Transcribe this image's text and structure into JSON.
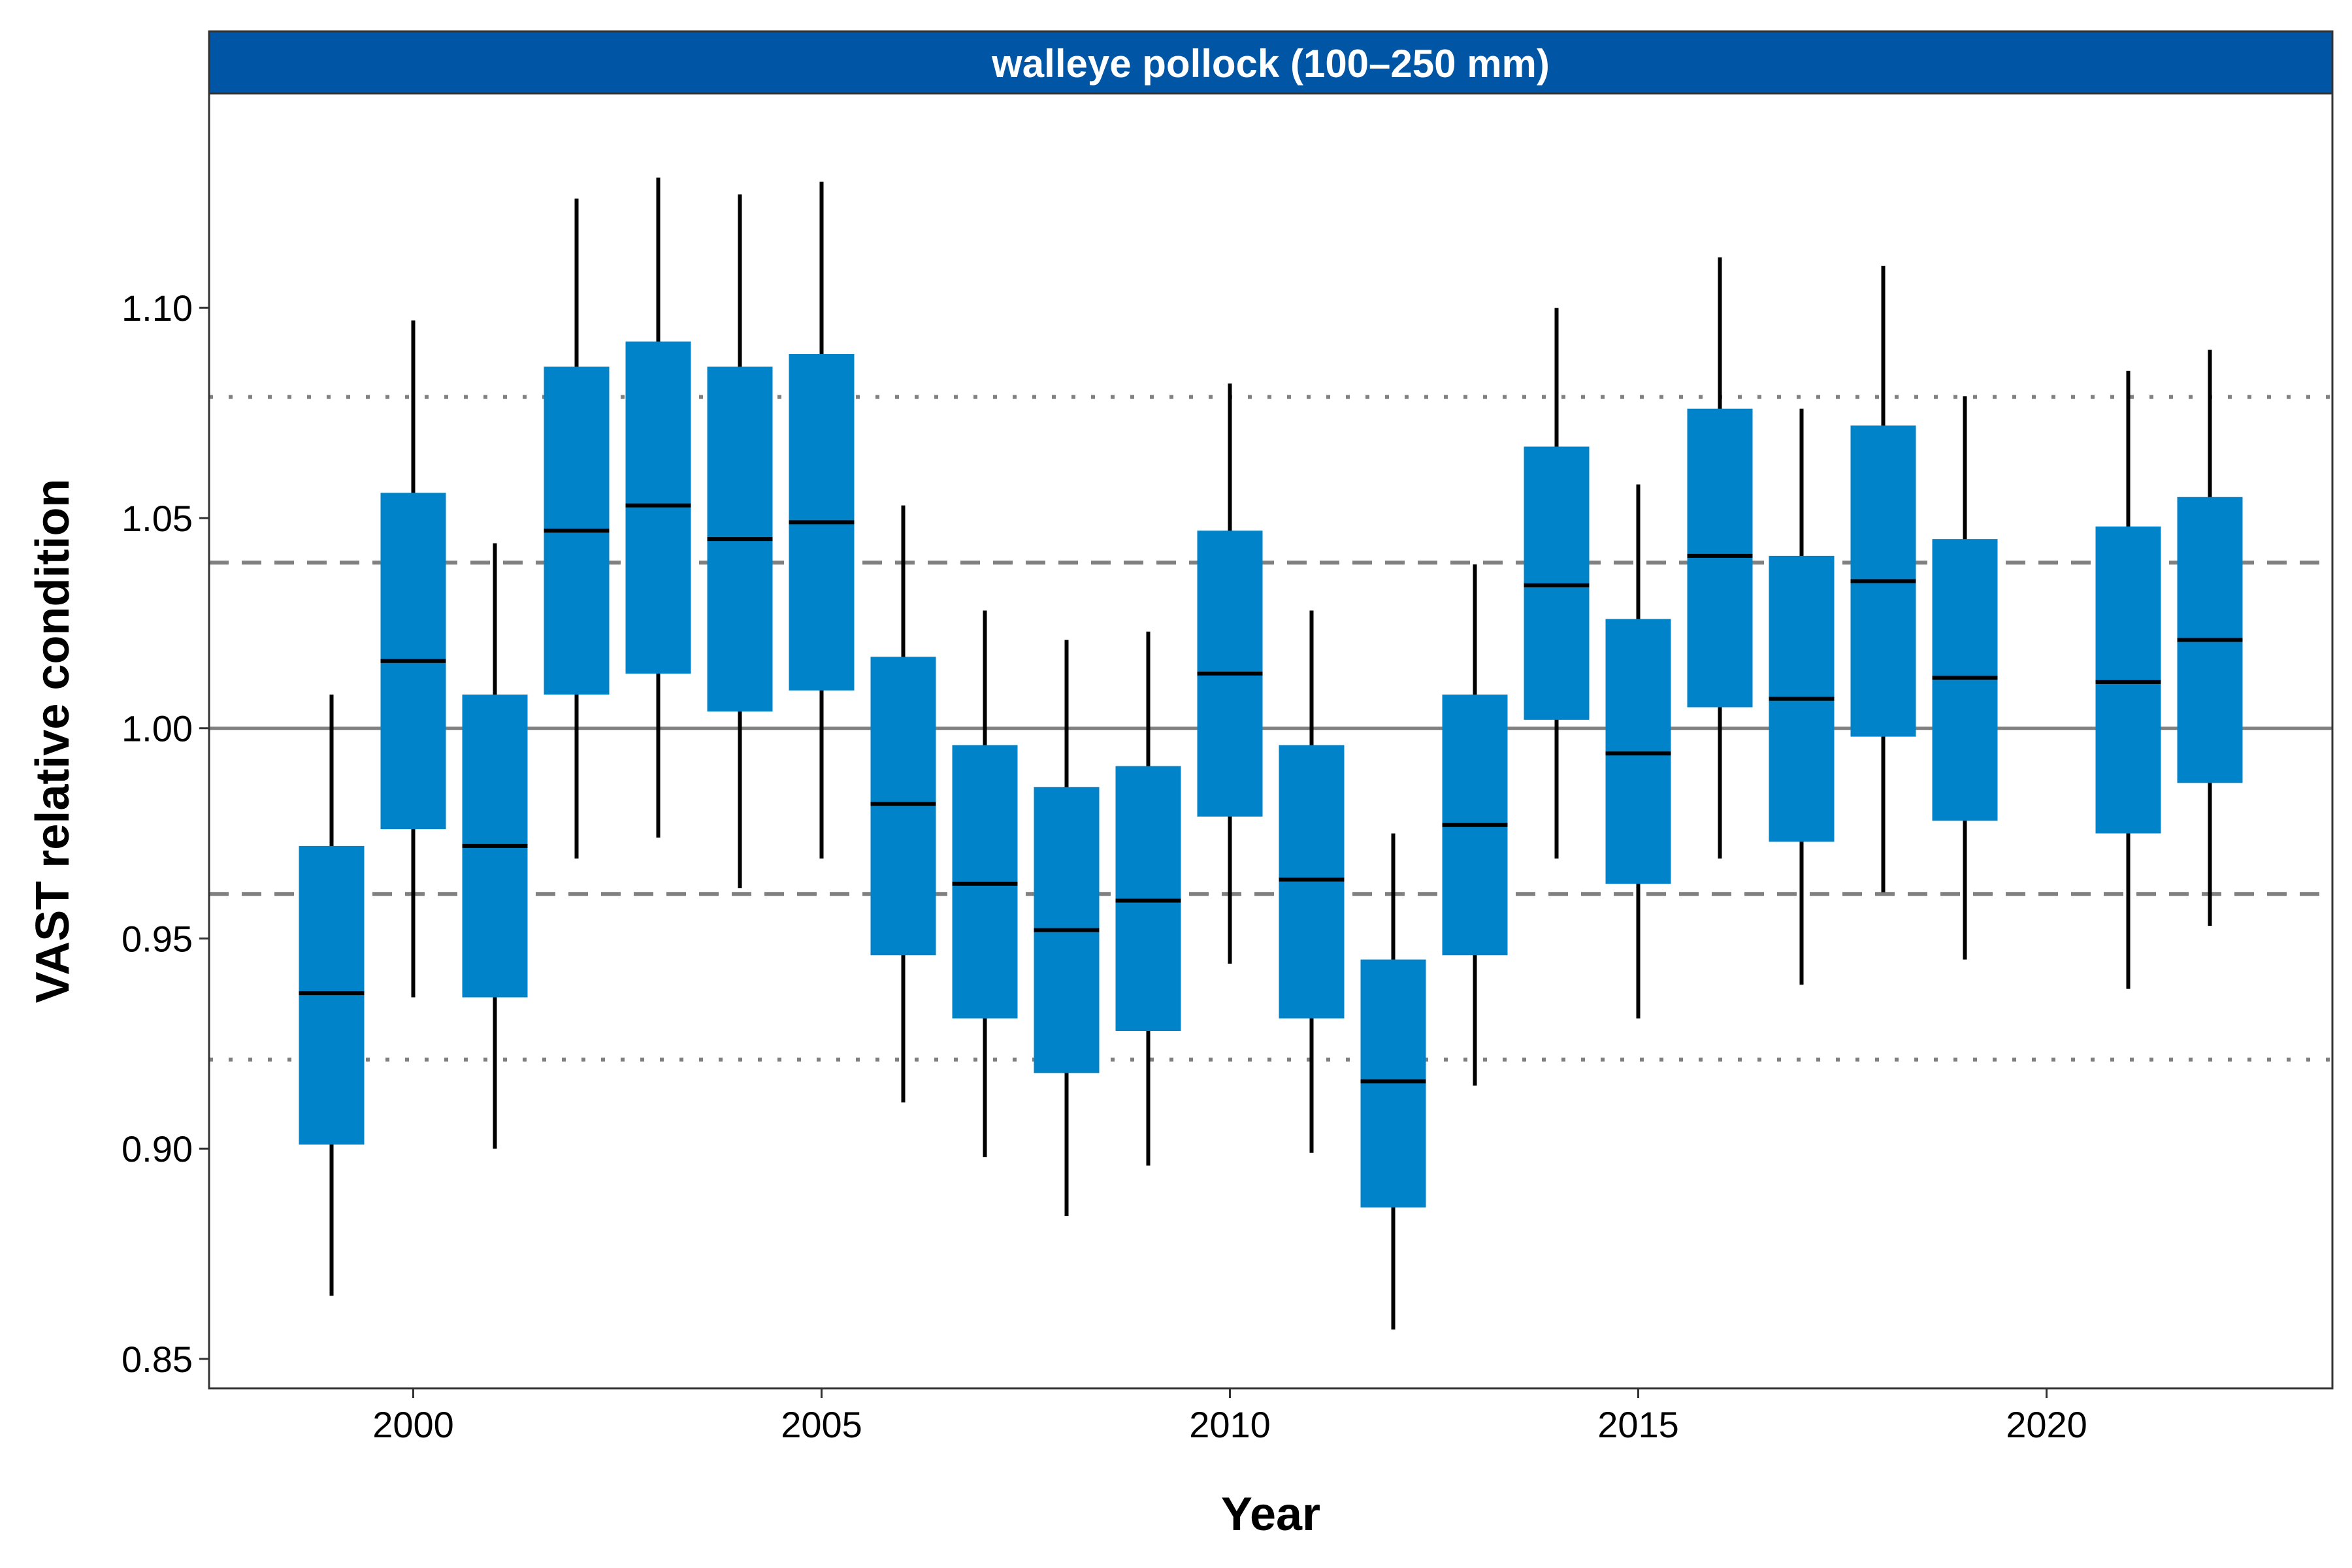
{
  "chart_data": {
    "type": "boxplot",
    "panel_title": "walleye pollock (100–250 mm)",
    "xlabel": "Year",
    "ylabel": "VAST relative condition",
    "xlim": [
      1997.5,
      2023.5
    ],
    "ylim": [
      0.843,
      1.151
    ],
    "x_ticks": [
      2000,
      2005,
      2010,
      2015,
      2020
    ],
    "x_tick_labels": [
      "2000",
      "2005",
      "2010",
      "2015",
      "2020"
    ],
    "y_ticks": [
      0.85,
      0.9,
      0.95,
      1.0,
      1.05,
      1.1
    ],
    "y_tick_labels": [
      "0.85",
      "0.90",
      "0.95",
      "1.00",
      "1.05",
      "1.10"
    ],
    "grid": false,
    "reference_lines": [
      {
        "value": 1.0,
        "style": "solid"
      },
      {
        "value": 1.0394,
        "style": "dashed"
      },
      {
        "value": 0.9606,
        "style": "dashed"
      },
      {
        "value": 1.0788,
        "style": "dotted"
      },
      {
        "value": 0.9212,
        "style": "dotted"
      }
    ],
    "box_color": "#0083C9",
    "strip_color": "#0055A4",
    "boxes": [
      {
        "year": 1999,
        "low": 0.865,
        "q1": 0.901,
        "median": 0.937,
        "q3": 0.972,
        "high": 1.008
      },
      {
        "year": 2000,
        "low": 0.936,
        "q1": 0.976,
        "median": 1.016,
        "q3": 1.056,
        "high": 1.097
      },
      {
        "year": 2001,
        "low": 0.9,
        "q1": 0.936,
        "median": 0.972,
        "q3": 1.008,
        "high": 1.044
      },
      {
        "year": 2002,
        "low": 0.969,
        "q1": 1.008,
        "median": 1.047,
        "q3": 1.086,
        "high": 1.126
      },
      {
        "year": 2003,
        "low": 0.974,
        "q1": 1.013,
        "median": 1.053,
        "q3": 1.092,
        "high": 1.131
      },
      {
        "year": 2004,
        "low": 0.962,
        "q1": 1.004,
        "median": 1.045,
        "q3": 1.086,
        "high": 1.127
      },
      {
        "year": 2005,
        "low": 0.969,
        "q1": 1.009,
        "median": 1.049,
        "q3": 1.089,
        "high": 1.13
      },
      {
        "year": 2006,
        "low": 0.911,
        "q1": 0.946,
        "median": 0.982,
        "q3": 1.017,
        "high": 1.053
      },
      {
        "year": 2007,
        "low": 0.898,
        "q1": 0.931,
        "median": 0.963,
        "q3": 0.996,
        "high": 1.028
      },
      {
        "year": 2008,
        "low": 0.884,
        "q1": 0.918,
        "median": 0.952,
        "q3": 0.986,
        "high": 1.021
      },
      {
        "year": 2009,
        "low": 0.896,
        "q1": 0.928,
        "median": 0.959,
        "q3": 0.991,
        "high": 1.023
      },
      {
        "year": 2010,
        "low": 0.944,
        "q1": 0.979,
        "median": 1.013,
        "q3": 1.047,
        "high": 1.082
      },
      {
        "year": 2011,
        "low": 0.899,
        "q1": 0.931,
        "median": 0.964,
        "q3": 0.996,
        "high": 1.028
      },
      {
        "year": 2012,
        "low": 0.857,
        "q1": 0.886,
        "median": 0.916,
        "q3": 0.945,
        "high": 0.975
      },
      {
        "year": 2013,
        "low": 0.915,
        "q1": 0.946,
        "median": 0.977,
        "q3": 1.008,
        "high": 1.039
      },
      {
        "year": 2014,
        "low": 0.969,
        "q1": 1.002,
        "median": 1.034,
        "q3": 1.067,
        "high": 1.1
      },
      {
        "year": 2015,
        "low": 0.931,
        "q1": 0.963,
        "median": 0.994,
        "q3": 1.026,
        "high": 1.058
      },
      {
        "year": 2016,
        "low": 0.969,
        "q1": 1.005,
        "median": 1.041,
        "q3": 1.076,
        "high": 1.112
      },
      {
        "year": 2017,
        "low": 0.939,
        "q1": 0.973,
        "median": 1.007,
        "q3": 1.041,
        "high": 1.076
      },
      {
        "year": 2018,
        "low": 0.961,
        "q1": 0.998,
        "median": 1.035,
        "q3": 1.072,
        "high": 1.11
      },
      {
        "year": 2019,
        "low": 0.945,
        "q1": 0.978,
        "median": 1.012,
        "q3": 1.045,
        "high": 1.079
      },
      {
        "year": 2021,
        "low": 0.938,
        "q1": 0.975,
        "median": 1.011,
        "q3": 1.048,
        "high": 1.085
      },
      {
        "year": 2022,
        "low": 0.953,
        "q1": 0.987,
        "median": 1.021,
        "q3": 1.055,
        "high": 1.09
      }
    ]
  }
}
